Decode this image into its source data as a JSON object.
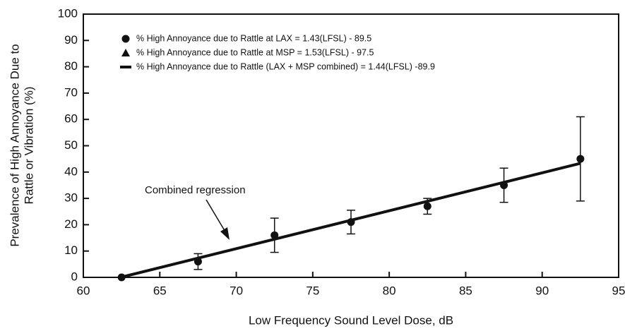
{
  "chart_data": {
    "type": "scatter",
    "xlabel": "Low Frequency Sound Level Dose, dB",
    "ylabel": [
      "Prevalence of High Annoyance Due to",
      "Rattle or Vibration (%)"
    ],
    "xlim": [
      60,
      95
    ],
    "xticks": [
      60,
      65,
      70,
      75,
      80,
      85,
      90,
      95
    ],
    "ylim": [
      0,
      100
    ],
    "yticks": [
      0,
      10,
      20,
      30,
      40,
      50,
      60,
      70,
      80,
      90,
      100
    ],
    "series": [
      {
        "name": "% High Annoyance due to Rattle at LAX = 1.43(LFSL) - 89.5",
        "marker": "circle",
        "color": "#111111",
        "x": [
          62.5,
          67.5,
          72.5,
          77.5,
          82.5,
          87.5,
          92.5
        ],
        "values": [
          0,
          6,
          16,
          21,
          27,
          35,
          45
        ],
        "errors": [
          null,
          3,
          6.5,
          4.5,
          3,
          6.5,
          16
        ]
      },
      {
        "name": "% High Annoyance due to Rattle at MSP = 1.53(LFSL) - 97.5",
        "marker": "triangle",
        "color": "#111111",
        "x": [],
        "values": []
      },
      {
        "name": "% High Annoyance due to Rattle (LAX + MSP combined) = 1.44(LFSL) -89.9",
        "marker": "line",
        "color": "#111111",
        "x": [
          62.5,
          92.5
        ],
        "values": [
          0.1,
          43.3
        ]
      }
    ],
    "annotation": "Combined regression"
  }
}
